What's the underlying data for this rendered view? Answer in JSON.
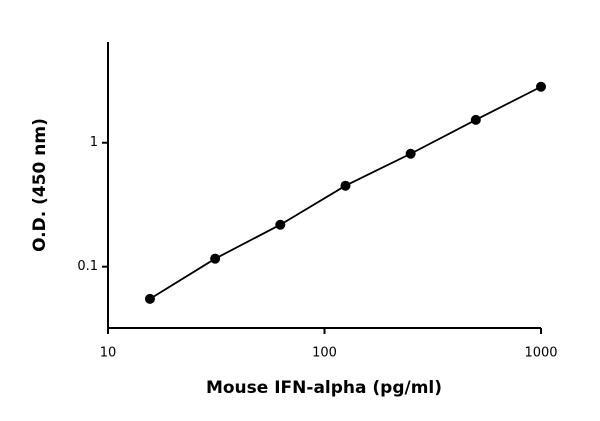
{
  "chart_data": {
    "type": "scatter",
    "x_label": "Mouse IFN-alpha (pg/ml)",
    "y_label": "O.D. (450 nm)",
    "x": [
      15.625,
      31.25,
      62.5,
      125,
      250,
      500,
      1000
    ],
    "values": [
      0.055,
      0.116,
      0.218,
      0.45,
      0.815,
      1.53,
      2.83
    ],
    "color": "#000000",
    "xlog": true,
    "ylog": true,
    "xlim": [
      10,
      1000
    ],
    "ylim": [
      0.032,
      6.5
    ],
    "xticks": [
      10,
      100,
      1000
    ],
    "yticks": [
      0.1,
      1
    ]
  }
}
